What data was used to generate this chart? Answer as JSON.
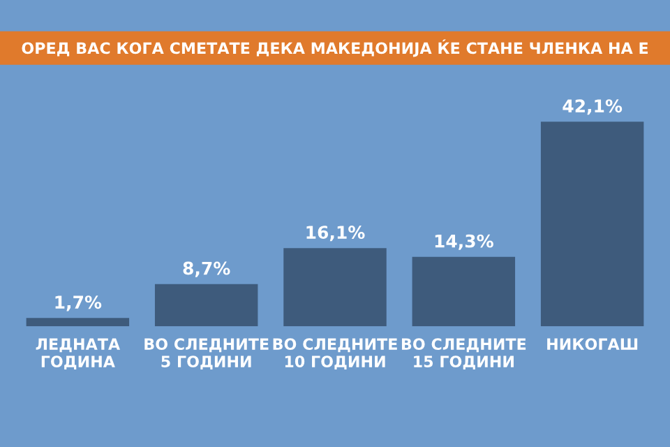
{
  "chart_data": {
    "type": "bar",
    "title": "ОРЕД ВАС КОГА СМЕТАТЕ ДЕКА МАКЕДОНИЈА ЌЕ СТАНЕ ЧЛЕНКА НА Е",
    "categories": [
      "ЛЕДНАТА\nГОДИНА",
      "ВО СЛЕДНИТЕ\n5 ГОДИНИ",
      "ВО СЛЕДНИТЕ\n10 ГОДИНИ",
      "ВО СЛЕДНИТЕ\n15 ГОДИНИ",
      "НИКОГАШ"
    ],
    "values": [
      1.7,
      8.7,
      16.1,
      14.3,
      42.1
    ],
    "value_labels": [
      "1,7%",
      "8,7%",
      "16,1%",
      "14,3%",
      "42,1%"
    ],
    "color": "#3e5b7c",
    "grid": false,
    "legend": false
  }
}
